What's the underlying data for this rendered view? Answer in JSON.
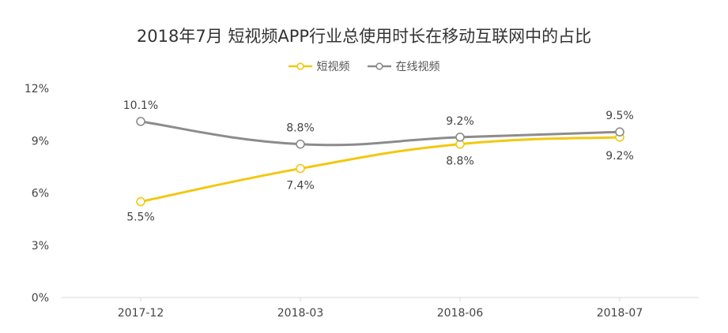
{
  "chart_data": {
    "type": "line",
    "title": "2018年7月 短视频APP行业总使用时长在移动互联网中的占比",
    "categories": [
      "2017-12",
      "2018-03",
      "2018-06",
      "2018-07"
    ],
    "series": [
      {
        "name": "短视频",
        "color": "#F2C811",
        "values": [
          5.5,
          7.4,
          8.8,
          9.2
        ],
        "labels": [
          "5.5%",
          "7.4%",
          "8.8%",
          "9.2%"
        ]
      },
      {
        "name": "在线视频",
        "color": "#8C8C8C",
        "values": [
          10.1,
          8.8,
          9.2,
          9.5
        ],
        "labels": [
          "10.1%",
          "8.8%",
          "9.2%",
          "9.5%"
        ]
      }
    ],
    "ylim": [
      0,
      12
    ],
    "yticks": [
      0,
      3,
      6,
      9,
      12
    ],
    "ytick_labels": [
      "0%",
      "3%",
      "6%",
      "9%",
      "12%"
    ],
    "legend_position": "top-center",
    "grid": false
  }
}
